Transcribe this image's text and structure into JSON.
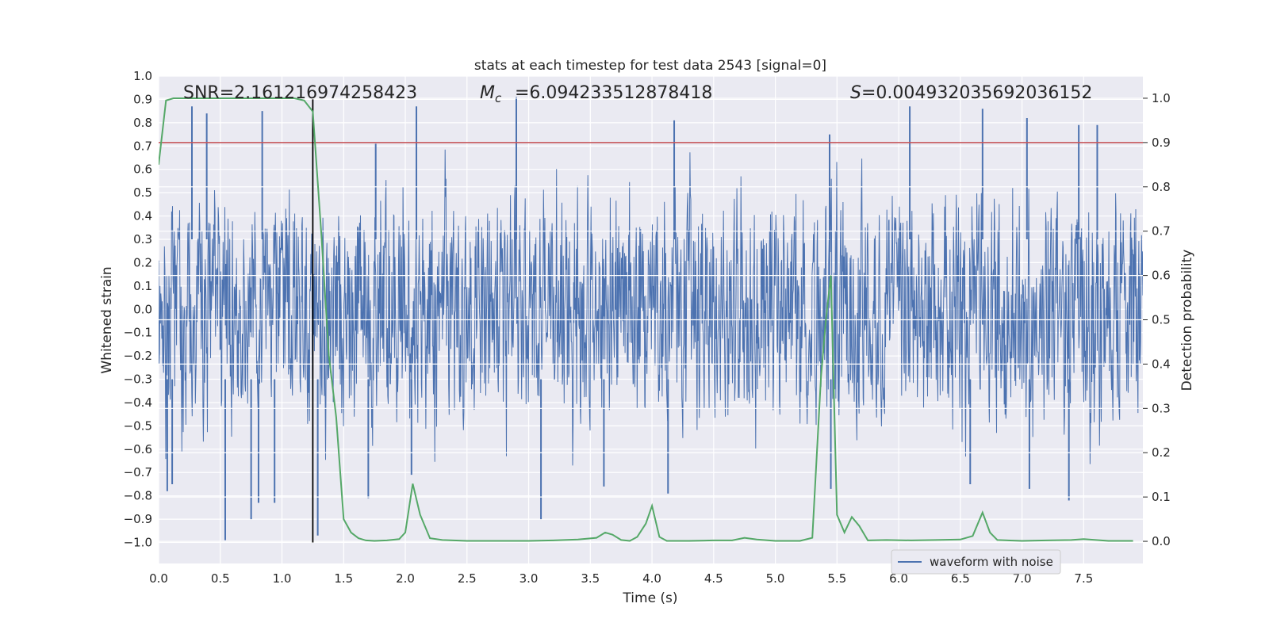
{
  "chart_data": {
    "type": "line",
    "title": "stats at each timestep for test data 2543 [signal=0]",
    "xlabel": "Time (s)",
    "ylabel_left": "Whitened strain",
    "ylabel_right": "Detection probability",
    "xlim": [
      0.0,
      7.98
    ],
    "ylim_left": [
      -1.09,
      1.0
    ],
    "ylim_right": [
      -0.05,
      1.05
    ],
    "grid": true,
    "x_ticks": [
      "0.0",
      "0.5",
      "1.0",
      "1.5",
      "2.0",
      "2.5",
      "3.0",
      "3.5",
      "4.0",
      "4.5",
      "5.0",
      "5.5",
      "6.0",
      "6.5",
      "7.0",
      "7.5"
    ],
    "y_left_ticks": [
      "1.0",
      "0.9",
      "0.8",
      "0.7",
      "0.6",
      "0.5",
      "0.4",
      "0.3",
      "0.2",
      "0.1",
      "0.0",
      "−0.1",
      "−0.2",
      "−0.3",
      "−0.4",
      "−0.5",
      "−0.6",
      "−0.7",
      "−0.8",
      "−0.9",
      "−1.0"
    ],
    "y_right_ticks": [
      "0.0",
      "0.1",
      "0.2",
      "0.3",
      "0.4",
      "0.5",
      "0.6",
      "0.7",
      "0.8",
      "0.9",
      "1.0"
    ],
    "annotations": {
      "snr": "SNR=2.161216974258423",
      "mc": "=6.094233512878418",
      "s": "=0.004932035692036152"
    },
    "threshold": {
      "value": 0.9,
      "axis": "right",
      "color": "#c44e52"
    },
    "marker_line": {
      "x": 1.25,
      "y_from": -1.0,
      "y_to": 0.9,
      "color": "#000000"
    },
    "legend": {
      "label": "waveform with noise",
      "location": "lower-right"
    },
    "series": [
      {
        "name": "waveform with noise",
        "axis": "left",
        "color": "#4c72b0",
        "description": "dense whitened strain noise, approx. uniform band between -0.5 and 0.5 with spikes",
        "spikes": [
          {
            "x": 0.27,
            "y": 0.87
          },
          {
            "x": 0.39,
            "y": 0.84
          },
          {
            "x": 0.84,
            "y": 0.85
          },
          {
            "x": 2.09,
            "y": 0.87
          },
          {
            "x": 2.9,
            "y": 0.91
          },
          {
            "x": 1.76,
            "y": 0.71
          },
          {
            "x": 4.18,
            "y": 0.81
          },
          {
            "x": 5.44,
            "y": 0.75
          },
          {
            "x": 6.09,
            "y": 0.87
          },
          {
            "x": 6.68,
            "y": 0.86
          },
          {
            "x": 7.04,
            "y": 0.82
          },
          {
            "x": 7.46,
            "y": 0.79
          },
          {
            "x": 7.61,
            "y": 0.79
          },
          {
            "x": 0.54,
            "y": -0.99
          },
          {
            "x": 0.75,
            "y": -0.9
          },
          {
            "x": 0.81,
            "y": -0.83
          },
          {
            "x": 0.94,
            "y": -0.83
          },
          {
            "x": 1.29,
            "y": -0.97
          },
          {
            "x": 1.7,
            "y": -0.81
          },
          {
            "x": 2.05,
            "y": -0.71
          },
          {
            "x": 3.1,
            "y": -0.9
          },
          {
            "x": 3.61,
            "y": -0.76
          },
          {
            "x": 4.13,
            "y": -0.79
          },
          {
            "x": 5.45,
            "y": -0.77
          },
          {
            "x": 6.58,
            "y": -0.75
          },
          {
            "x": 7.06,
            "y": -0.77
          },
          {
            "x": 7.38,
            "y": -0.82
          },
          {
            "x": 0.07,
            "y": -0.78
          },
          {
            "x": 0.11,
            "y": -0.75
          }
        ]
      },
      {
        "name": "detection probability",
        "axis": "right",
        "color": "#55a868",
        "x": [
          0.0,
          0.06,
          0.12,
          0.18,
          0.3,
          0.5,
          0.7,
          0.9,
          1.0,
          1.1,
          1.18,
          1.25,
          1.32,
          1.38,
          1.44,
          1.5,
          1.56,
          1.62,
          1.68,
          1.75,
          1.85,
          1.95,
          2.0,
          2.06,
          2.12,
          2.2,
          2.3,
          2.5,
          2.8,
          3.0,
          3.2,
          3.4,
          3.55,
          3.62,
          3.68,
          3.75,
          3.82,
          3.88,
          3.95,
          4.0,
          4.06,
          4.12,
          4.3,
          4.5,
          4.65,
          4.75,
          4.85,
          5.0,
          5.2,
          5.3,
          5.37,
          5.41,
          5.45,
          5.5,
          5.56,
          5.62,
          5.68,
          5.75,
          5.9,
          6.1,
          6.3,
          6.5,
          6.6,
          6.68,
          6.74,
          6.8,
          7.0,
          7.2,
          7.4,
          7.5,
          7.7,
          7.9
        ],
        "y": [
          0.85,
          0.995,
          1.0,
          1.0,
          1.0,
          1.0,
          1.0,
          1.0,
          1.0,
          1.0,
          0.995,
          0.97,
          0.69,
          0.42,
          0.28,
          0.05,
          0.02,
          0.007,
          0.002,
          0.001,
          0.002,
          0.005,
          0.02,
          0.13,
          0.06,
          0.007,
          0.003,
          0.001,
          0.001,
          0.001,
          0.002,
          0.004,
          0.008,
          0.02,
          0.015,
          0.003,
          0.001,
          0.01,
          0.04,
          0.08,
          0.01,
          0.001,
          0.001,
          0.002,
          0.002,
          0.008,
          0.004,
          0.001,
          0.001,
          0.008,
          0.37,
          0.5,
          0.6,
          0.06,
          0.02,
          0.055,
          0.035,
          0.002,
          0.003,
          0.002,
          0.003,
          0.004,
          0.012,
          0.065,
          0.02,
          0.003,
          0.001,
          0.002,
          0.003,
          0.005,
          0.001,
          0.001
        ]
      }
    ]
  }
}
